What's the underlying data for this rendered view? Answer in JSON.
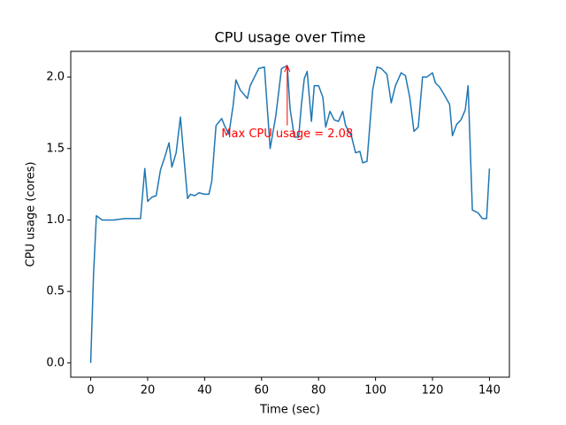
{
  "chart_data": {
    "type": "line",
    "title": "CPU usage over Time",
    "x_label": "Time (sec)",
    "y_label": "CPU usage (cores)",
    "series": [
      {
        "name": "CPU usage",
        "color": "#1f77b4",
        "x": [
          0,
          1,
          2,
          4,
          8,
          12,
          17.5,
          19,
          20,
          21.5,
          23,
          24.5,
          26,
          27.5,
          28.5,
          30,
          31.5,
          32.5,
          34,
          35,
          36.5,
          38,
          40,
          41.5,
          42.5,
          44,
          46,
          47,
          48.5,
          50,
          51,
          52.5,
          55,
          56,
          58,
          59,
          61,
          63,
          65,
          67,
          69,
          70,
          71.5,
          73,
          74,
          75,
          76,
          77.5,
          78.5,
          80,
          81.5,
          82.5,
          84,
          85.5,
          87,
          88.5,
          89.5,
          91.5,
          93,
          94.5,
          95.5,
          97,
          99,
          100.5,
          102,
          104,
          105.5,
          107,
          109,
          110.5,
          112,
          113.5,
          115,
          116.5,
          118,
          120,
          121,
          122.5,
          124,
          126,
          127,
          128.5,
          130,
          131.5,
          132.5,
          134,
          136,
          137.5,
          139,
          140
        ],
        "values": [
          0,
          0.62,
          1.03,
          1.0,
          1.0,
          1.01,
          1.01,
          1.36,
          1.13,
          1.16,
          1.17,
          1.35,
          1.44,
          1.54,
          1.37,
          1.47,
          1.72,
          1.49,
          1.15,
          1.18,
          1.17,
          1.19,
          1.18,
          1.18,
          1.27,
          1.66,
          1.71,
          1.66,
          1.6,
          1.8,
          1.98,
          1.91,
          1.85,
          1.94,
          2.02,
          2.06,
          2.07,
          1.5,
          1.73,
          2.06,
          2.08,
          1.78,
          1.58,
          1.58,
          1.81,
          1.99,
          2.04,
          1.69,
          1.94,
          1.94,
          1.86,
          1.65,
          1.76,
          1.7,
          1.69,
          1.76,
          1.66,
          1.59,
          1.47,
          1.48,
          1.4,
          1.41,
          1.91,
          2.07,
          2.06,
          2.02,
          1.82,
          1.94,
          2.03,
          2.01,
          1.86,
          1.62,
          1.65,
          2.0,
          2.0,
          2.03,
          1.96,
          1.93,
          1.88,
          1.81,
          1.59,
          1.67,
          1.7,
          1.77,
          1.94,
          1.07,
          1.05,
          1.01,
          1.01,
          1.36
        ]
      }
    ],
    "xlim": [
      -7,
      147
    ],
    "ylim": [
      -0.1,
      2.18
    ],
    "xticks": [
      0,
      20,
      40,
      60,
      80,
      100,
      120,
      140
    ],
    "yticks": [
      {
        "value": 0,
        "label": "0.0"
      },
      0.5,
      {
        "value": 1,
        "label": "1.0"
      },
      1.5,
      {
        "value": 2,
        "label": "2.0"
      }
    ],
    "annotations": [
      {
        "text": "Max CPU usage = 2.08",
        "x": 69,
        "y": 2.08,
        "text_x": 69,
        "text_y": 1.6,
        "color": "red"
      }
    ]
  }
}
